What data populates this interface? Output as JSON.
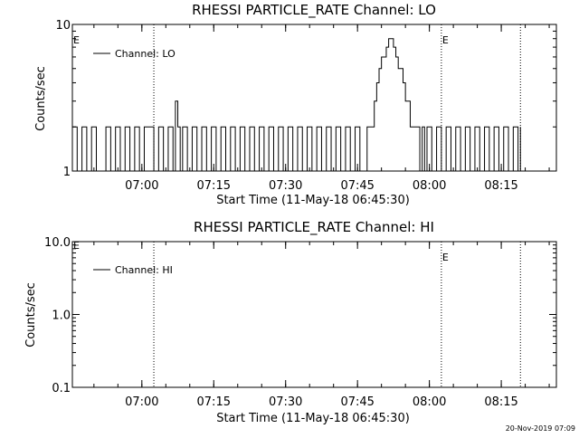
{
  "footer": {
    "timestamp": "20-Nov-2019 07:09"
  },
  "chart_data": [
    {
      "type": "line",
      "title": "RHESSI PARTICLE_RATE Channel: LO",
      "xlabel": "Start Time (11-May-18 06:45:30)",
      "ylabel": "Counts/sec",
      "yscale": "log",
      "ylim": [
        1,
        10
      ],
      "y_ticks": [
        {
          "value": 1,
          "label": "1"
        },
        {
          "value": 10,
          "label": "10"
        }
      ],
      "xlim": [
        "06:45:30",
        "08:26:30"
      ],
      "x_ticks": [
        "07:00",
        "07:15",
        "07:30",
        "07:45",
        "08:00",
        "08:15"
      ],
      "legend": {
        "position": "top-left",
        "entries": [
          "Channel: LO"
        ]
      },
      "markers": [
        {
          "time": "07:02:30",
          "label": ""
        },
        {
          "time": "08:02:30",
          "label": "E"
        },
        {
          "time": "08:19:00",
          "label": ""
        }
      ],
      "corner_marker": "E",
      "grid": false,
      "series": [
        {
          "name": "Channel: LO",
          "x": [
            "06:45:30",
            "06:46:30",
            "06:47:30",
            "06:48:30",
            "06:49:30",
            "06:50:30",
            "06:51:30",
            "06:52:30",
            "06:53:30",
            "06:54:30",
            "06:55:30",
            "06:56:30",
            "06:57:30",
            "06:58:30",
            "06:59:30",
            "07:00:30",
            "07:01:30",
            "07:02:30",
            "07:03:30",
            "07:04:30",
            "07:05:30",
            "07:06:30",
            "07:07:00",
            "07:07:30",
            "07:08:00",
            "07:08:30",
            "07:09:30",
            "07:10:30",
            "07:11:30",
            "07:12:30",
            "07:13:30",
            "07:14:30",
            "07:15:30",
            "07:16:30",
            "07:17:30",
            "07:18:30",
            "07:19:30",
            "07:20:30",
            "07:21:30",
            "07:22:30",
            "07:23:30",
            "07:24:30",
            "07:25:30",
            "07:26:30",
            "07:27:30",
            "07:28:30",
            "07:29:30",
            "07:30:30",
            "07:31:30",
            "07:32:30",
            "07:33:30",
            "07:34:30",
            "07:35:30",
            "07:36:30",
            "07:37:30",
            "07:38:30",
            "07:39:30",
            "07:40:30",
            "07:41:30",
            "07:42:30",
            "07:43:30",
            "07:44:30",
            "07:45:30",
            "07:47:00",
            "07:48:00",
            "07:48:30",
            "07:49:00",
            "07:49:30",
            "07:50:00",
            "07:50:30",
            "07:51:00",
            "07:51:30",
            "07:52:00",
            "07:52:30",
            "07:53:00",
            "07:53:30",
            "07:54:00",
            "07:54:30",
            "07:55:00",
            "07:55:30",
            "07:56:00",
            "07:56:30",
            "07:57:00",
            "07:57:30",
            "07:58:00",
            "07:58:30",
            "07:59:00",
            "07:59:30",
            "08:00:30",
            "08:01:30",
            "08:02:30",
            "08:03:30",
            "08:04:30",
            "08:05:30",
            "08:06:30",
            "08:07:30",
            "08:08:30",
            "08:09:30",
            "08:10:30",
            "08:11:30",
            "08:12:30",
            "08:13:30",
            "08:14:30",
            "08:15:30",
            "08:16:30",
            "08:17:30",
            "08:18:30",
            "08:19:00"
          ],
          "y": [
            2,
            1,
            2,
            1,
            2,
            1,
            1,
            2,
            1,
            2,
            1,
            2,
            1,
            2,
            1,
            2,
            2,
            1,
            2,
            1,
            2,
            1,
            3,
            2,
            1,
            2,
            1,
            2,
            1,
            2,
            1,
            2,
            1,
            2,
            1,
            2,
            1,
            2,
            1,
            2,
            1,
            2,
            1,
            2,
            1,
            2,
            1,
            2,
            1,
            2,
            1,
            2,
            1,
            2,
            1,
            2,
            1,
            2,
            1,
            2,
            1,
            2,
            1,
            2,
            2,
            3,
            4,
            5,
            6,
            6,
            7,
            8,
            8,
            7,
            6,
            5,
            5,
            4,
            3,
            3,
            2,
            2,
            2,
            2,
            1,
            2,
            1,
            2,
            1,
            2,
            1,
            2,
            1,
            2,
            1,
            2,
            1,
            2,
            1,
            2,
            1,
            2,
            1,
            2,
            1,
            2,
            1,
            2
          ]
        }
      ]
    },
    {
      "type": "line",
      "title": "RHESSI PARTICLE_RATE Channel: HI",
      "xlabel": "Start Time (11-May-18 06:45:30)",
      "ylabel": "Counts/sec",
      "yscale": "log",
      "ylim": [
        0.1,
        10
      ],
      "y_ticks": [
        {
          "value": 0.1,
          "label": "0.1"
        },
        {
          "value": 1,
          "label": "1.0"
        },
        {
          "value": 10,
          "label": "10.0"
        }
      ],
      "xlim": [
        "06:45:30",
        "08:26:30"
      ],
      "x_ticks": [
        "07:00",
        "07:15",
        "07:30",
        "07:45",
        "08:00",
        "08:15"
      ],
      "legend": {
        "position": "top-left",
        "entries": [
          "Channel: HI"
        ]
      },
      "markers": [
        {
          "time": "07:02:30",
          "label": ""
        },
        {
          "time": "08:02:30",
          "label": "E"
        },
        {
          "time": "08:19:00",
          "label": ""
        }
      ],
      "corner_marker": "E",
      "grid": false,
      "series": [
        {
          "name": "Channel: HI",
          "x": [],
          "y": []
        }
      ]
    }
  ]
}
